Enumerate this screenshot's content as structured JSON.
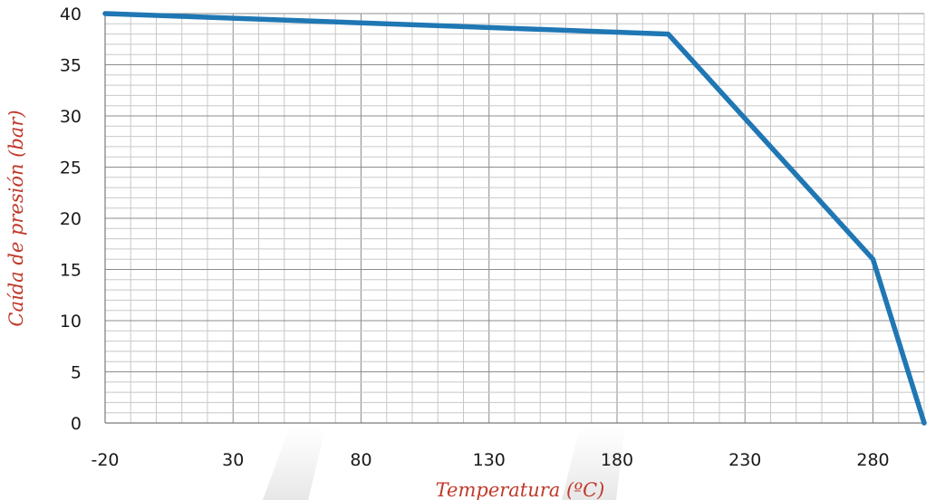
{
  "chart_data": {
    "type": "line",
    "xlabel": "Temperatura (ºC)",
    "ylabel": "Caída de presión (bar)",
    "xlim": [
      -20,
      300
    ],
    "ylim": [
      0,
      40
    ],
    "x_ticks": [
      -20,
      30,
      80,
      130,
      180,
      230,
      280
    ],
    "y_ticks": [
      0,
      5,
      10,
      15,
      20,
      25,
      30,
      35,
      40
    ],
    "grid": true,
    "series": [
      {
        "color": "#1f77b4",
        "x": [
          -20,
          200,
          280,
          300
        ],
        "y": [
          40,
          38,
          16,
          0
        ]
      }
    ]
  }
}
